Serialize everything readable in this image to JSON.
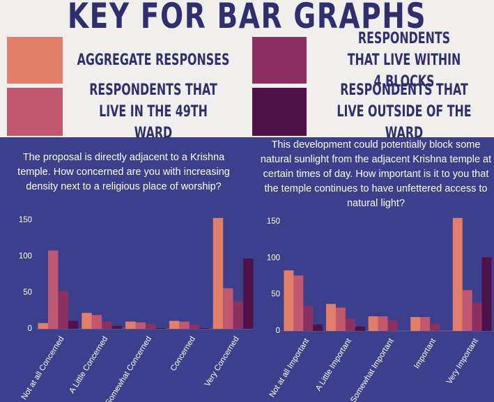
{
  "key_title": "KEY FOR BAR GRAPHS",
  "chart_data": [
    {
      "type": "bar",
      "title": "The proposal is directly adjacent to a Krishna temple. How concerned are you with increasing density next to a religious place of worship?",
      "categories": [
        "Not at all Concerned",
        "A Little Concerned",
        "Somewhat Concerned",
        "Concerned",
        "Very Concerned"
      ],
      "series": [
        {
          "name": "AGGREGATE RESPONSES",
          "color": "#e27f6b",
          "values": [
            8,
            22,
            10,
            11,
            153
          ]
        },
        {
          "name": "RESPONDENTS THAT LIVE IN THE 49TH WARD",
          "color": "#c0596f",
          "values": [
            108,
            19,
            9,
            10,
            56
          ]
        },
        {
          "name": "RESPONDENTS THAT LIVE WITHIN 4 BLOCKS",
          "color": "#8b3161",
          "values": [
            52,
            10,
            7,
            6,
            38
          ]
        },
        {
          "name": "RESPONDENTS THAT LIVE OUTSIDE OF THE WARD",
          "color": "#4d1348",
          "values": [
            11,
            4,
            1,
            1,
            97
          ]
        }
      ],
      "ylim": [
        0,
        150
      ],
      "yticks": [
        0,
        50,
        100,
        150
      ]
    },
    {
      "type": "bar",
      "title": "This development could potentially block some natural sunlight from the adjacent Krishna temple at certain times of day. How important is it to you that the temple continues to have unfettered access to natural light?",
      "categories": [
        "Not at all Important",
        "A Little Important",
        "Somewhat Important",
        "Important",
        "Very Important"
      ],
      "series": [
        {
          "values": [
            83,
            37,
            20,
            19,
            155
          ]
        },
        {
          "values": [
            76,
            32,
            20,
            19,
            56
          ]
        },
        {
          "values": [
            34,
            17,
            14,
            10,
            39
          ]
        },
        {
          "values": [
            9,
            6,
            0,
            0,
            101
          ]
        }
      ],
      "ylim": [
        0,
        150
      ],
      "yticks": [
        0,
        50,
        100,
        150
      ]
    }
  ]
}
